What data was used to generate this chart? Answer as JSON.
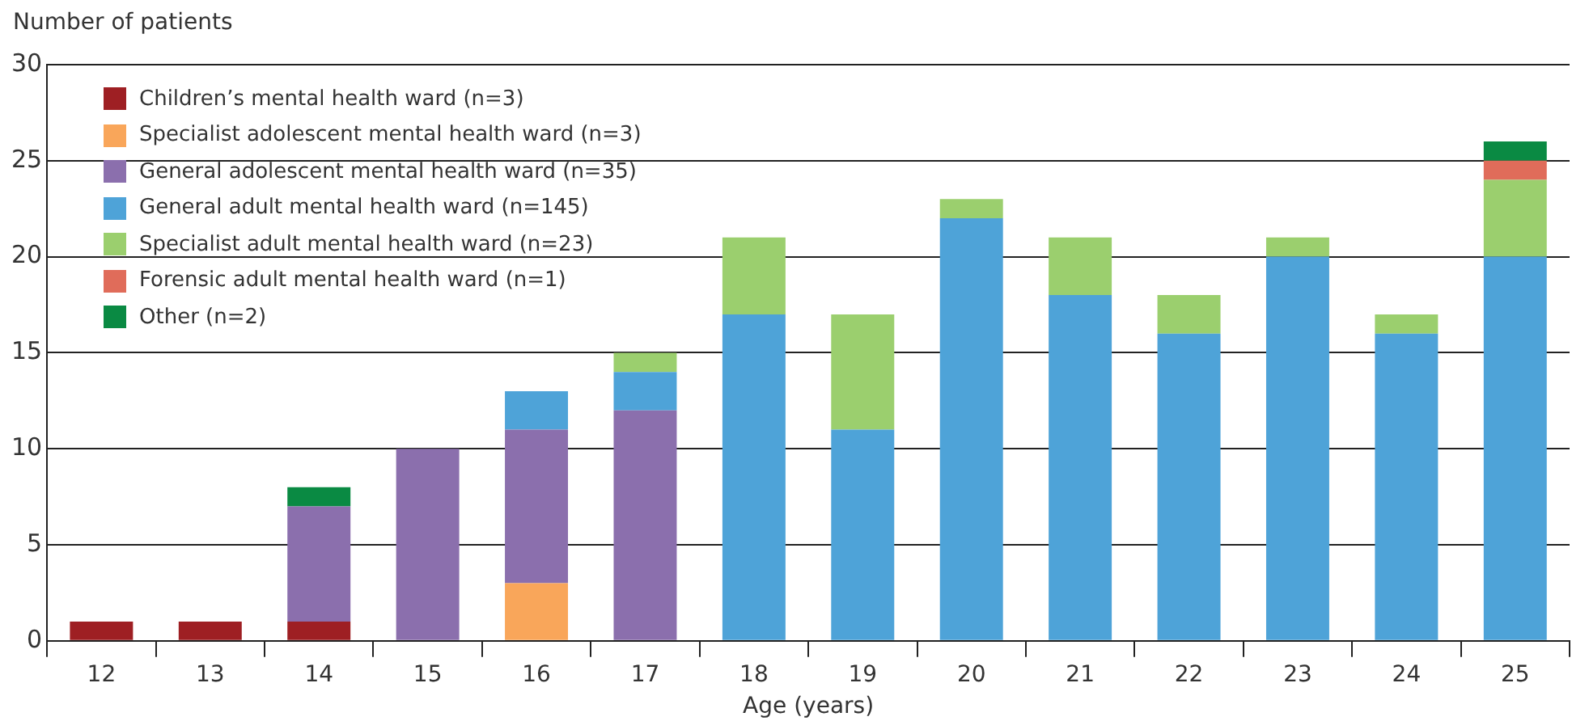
{
  "chart_data": {
    "type": "bar",
    "stacked": true,
    "xlabel": "Age (years)",
    "ylabel": "Number of patients",
    "categories": [
      "12",
      "13",
      "14",
      "15",
      "16",
      "17",
      "18",
      "19",
      "20",
      "21",
      "22",
      "23",
      "24",
      "25"
    ],
    "ylim": [
      0,
      30
    ],
    "yticks": [
      0,
      5,
      10,
      15,
      20,
      25,
      30
    ],
    "grid": "y",
    "legend": "top left",
    "series": [
      {
        "name": "Children’s mental health ward (n=3)",
        "color": "#9e1f23",
        "values": [
          1,
          1,
          1,
          null,
          null,
          null,
          null,
          null,
          null,
          null,
          null,
          null,
          null,
          null
        ]
      },
      {
        "name": "Specialist adolescent mental health ward (n=3)",
        "color": "#f9a65a",
        "values": [
          null,
          null,
          null,
          null,
          3,
          null,
          null,
          null,
          null,
          null,
          null,
          null,
          null,
          null
        ]
      },
      {
        "name": "General adolescent mental health ward (n=35)",
        "color": "#8b6fad",
        "values": [
          null,
          null,
          6,
          10,
          8,
          12,
          null,
          null,
          null,
          null,
          null,
          null,
          null,
          null
        ]
      },
      {
        "name": "General adult mental health ward (n=145)",
        "color": "#4ea3d8",
        "values": [
          null,
          null,
          null,
          null,
          2,
          2,
          17,
          11,
          22,
          18,
          16,
          20,
          16,
          20
        ]
      },
      {
        "name": "Specialist adult mental health ward (n=23)",
        "color": "#9bcf6e",
        "values": [
          null,
          null,
          null,
          null,
          null,
          1,
          4,
          6,
          1,
          3,
          2,
          1,
          1,
          4
        ]
      },
      {
        "name": "Forensic adult mental health ward (n=1)",
        "color": "#e06c5a",
        "values": [
          null,
          null,
          null,
          null,
          null,
          null,
          null,
          null,
          null,
          null,
          null,
          null,
          null,
          1
        ]
      },
      {
        "name": "Other (n=2)",
        "color": "#0a8a43",
        "values": [
          null,
          null,
          1,
          null,
          null,
          null,
          null,
          null,
          null,
          null,
          null,
          null,
          null,
          1
        ]
      }
    ]
  }
}
